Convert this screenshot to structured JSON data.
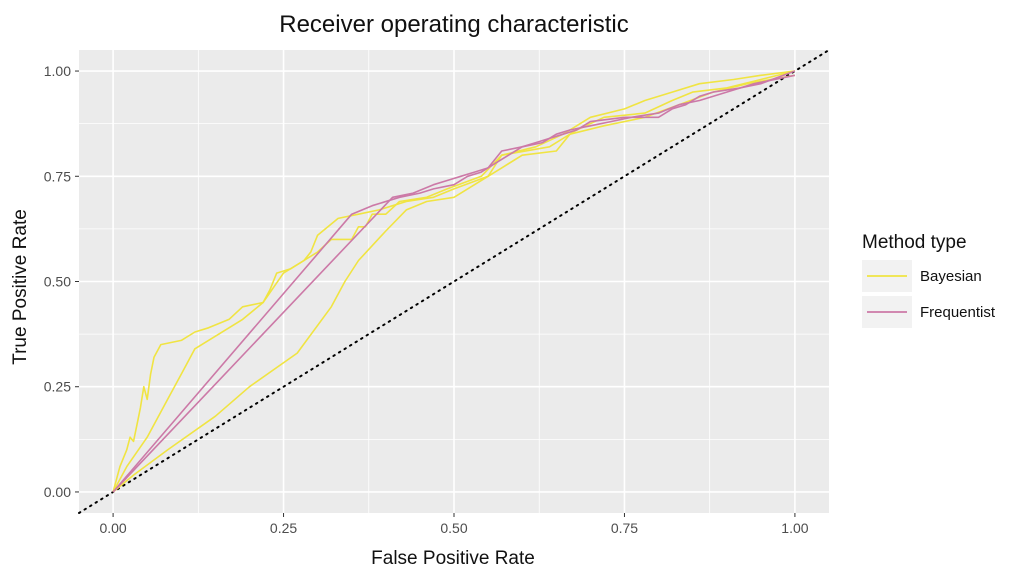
{
  "chart_data": {
    "type": "line",
    "title": "Receiver operating characteristic",
    "xlabel": "False Positive Rate",
    "ylabel": "True Positive Rate",
    "xlim": [
      -0.05,
      1.05
    ],
    "ylim": [
      -0.05,
      1.05
    ],
    "x_ticks": [
      "0.00",
      "0.25",
      "0.50",
      "0.75",
      "1.00"
    ],
    "y_ticks": [
      "0.00",
      "0.25",
      "0.50",
      "0.75",
      "1.00"
    ],
    "grid": true,
    "panel_background": "#EBEBEB",
    "legend": {
      "title": "Method type",
      "placement": "right",
      "entries": [
        {
          "label": "Bayesian",
          "color": "#F0E442"
        },
        {
          "label": "Frequentist",
          "color": "#CC79A7"
        }
      ]
    },
    "reference_line": {
      "style": "dotted",
      "color": "#000000",
      "from": [
        -0.05,
        -0.05
      ],
      "to": [
        1.05,
        1.05
      ]
    },
    "series": [
      {
        "group": "Bayesian",
        "color": "#F0E442",
        "points": [
          [
            0,
            0
          ],
          [
            0.005,
            0.03
          ],
          [
            0.01,
            0.06
          ],
          [
            0.02,
            0.1
          ],
          [
            0.025,
            0.13
          ],
          [
            0.03,
            0.12
          ],
          [
            0.035,
            0.16
          ],
          [
            0.04,
            0.2
          ],
          [
            0.045,
            0.25
          ],
          [
            0.05,
            0.22
          ],
          [
            0.055,
            0.28
          ],
          [
            0.06,
            0.32
          ],
          [
            0.07,
            0.35
          ],
          [
            0.1,
            0.36
          ],
          [
            0.12,
            0.38
          ],
          [
            0.14,
            0.39
          ],
          [
            0.17,
            0.41
          ],
          [
            0.19,
            0.44
          ],
          [
            0.22,
            0.45
          ],
          [
            0.23,
            0.48
          ],
          [
            0.24,
            0.52
          ],
          [
            0.26,
            0.53
          ],
          [
            0.28,
            0.55
          ],
          [
            0.29,
            0.57
          ],
          [
            0.3,
            0.61
          ],
          [
            0.33,
            0.65
          ],
          [
            0.36,
            0.66
          ],
          [
            0.39,
            0.67
          ],
          [
            0.41,
            0.68
          ],
          [
            0.43,
            0.69
          ],
          [
            0.47,
            0.7
          ],
          [
            0.5,
            0.72
          ],
          [
            0.55,
            0.75
          ],
          [
            0.57,
            0.8
          ],
          [
            0.62,
            0.82
          ],
          [
            0.66,
            0.85
          ],
          [
            0.7,
            0.89
          ],
          [
            0.75,
            0.91
          ],
          [
            0.78,
            0.93
          ],
          [
            0.82,
            0.95
          ],
          [
            0.86,
            0.97
          ],
          [
            0.91,
            0.98
          ],
          [
            0.95,
            0.99
          ],
          [
            1.0,
            1.0
          ]
        ]
      },
      {
        "group": "Bayesian",
        "color": "#F0E442",
        "points": [
          [
            0,
            0
          ],
          [
            0.02,
            0.06
          ],
          [
            0.05,
            0.13
          ],
          [
            0.08,
            0.22
          ],
          [
            0.1,
            0.28
          ],
          [
            0.12,
            0.34
          ],
          [
            0.15,
            0.37
          ],
          [
            0.19,
            0.41
          ],
          [
            0.22,
            0.45
          ],
          [
            0.25,
            0.52
          ],
          [
            0.28,
            0.55
          ],
          [
            0.3,
            0.57
          ],
          [
            0.32,
            0.6
          ],
          [
            0.35,
            0.6
          ],
          [
            0.36,
            0.63
          ],
          [
            0.37,
            0.63
          ],
          [
            0.38,
            0.66
          ],
          [
            0.4,
            0.66
          ],
          [
            0.42,
            0.69
          ],
          [
            0.46,
            0.7
          ],
          [
            0.49,
            0.72
          ],
          [
            0.54,
            0.75
          ],
          [
            0.57,
            0.8
          ],
          [
            0.64,
            0.82
          ],
          [
            0.68,
            0.86
          ],
          [
            0.72,
            0.89
          ],
          [
            0.78,
            0.9
          ],
          [
            0.82,
            0.93
          ],
          [
            0.85,
            0.95
          ],
          [
            0.9,
            0.96
          ],
          [
            0.95,
            0.98
          ],
          [
            1.0,
            1.0
          ]
        ]
      },
      {
        "group": "Bayesian",
        "color": "#F0E442",
        "points": [
          [
            0,
            0
          ],
          [
            0.03,
            0.04
          ],
          [
            0.08,
            0.1
          ],
          [
            0.15,
            0.18
          ],
          [
            0.2,
            0.25
          ],
          [
            0.27,
            0.33
          ],
          [
            0.32,
            0.44
          ],
          [
            0.34,
            0.5
          ],
          [
            0.36,
            0.55
          ],
          [
            0.4,
            0.62
          ],
          [
            0.43,
            0.67
          ],
          [
            0.46,
            0.69
          ],
          [
            0.5,
            0.7
          ],
          [
            0.53,
            0.73
          ],
          [
            0.57,
            0.77
          ],
          [
            0.6,
            0.8
          ],
          [
            0.65,
            0.81
          ],
          [
            0.67,
            0.85
          ],
          [
            0.72,
            0.87
          ],
          [
            0.78,
            0.89
          ],
          [
            0.83,
            0.92
          ],
          [
            0.88,
            0.95
          ],
          [
            0.93,
            0.97
          ],
          [
            1.0,
            0.99
          ]
        ]
      },
      {
        "group": "Frequentist",
        "color": "#CC79A7",
        "points": [
          [
            0,
            0
          ],
          [
            0.35,
            0.66
          ],
          [
            0.38,
            0.68
          ],
          [
            0.42,
            0.7
          ],
          [
            0.45,
            0.71
          ],
          [
            0.47,
            0.72
          ],
          [
            0.5,
            0.73
          ],
          [
            0.52,
            0.75
          ],
          [
            0.54,
            0.76
          ],
          [
            0.56,
            0.78
          ],
          [
            0.58,
            0.8
          ],
          [
            0.6,
            0.82
          ],
          [
            0.62,
            0.83
          ],
          [
            0.64,
            0.84
          ],
          [
            0.66,
            0.85
          ],
          [
            0.68,
            0.86
          ],
          [
            0.7,
            0.88
          ],
          [
            0.75,
            0.89
          ],
          [
            0.8,
            0.89
          ],
          [
            0.82,
            0.91
          ],
          [
            0.84,
            0.92
          ],
          [
            0.86,
            0.94
          ],
          [
            0.88,
            0.95
          ],
          [
            0.92,
            0.96
          ],
          [
            0.95,
            0.97
          ],
          [
            1.0,
            1.0
          ]
        ]
      },
      {
        "group": "Frequentist",
        "color": "#CC79A7",
        "points": [
          [
            0,
            0
          ],
          [
            0.41,
            0.7
          ],
          [
            0.44,
            0.71
          ],
          [
            0.47,
            0.73
          ],
          [
            0.49,
            0.74
          ],
          [
            0.51,
            0.75
          ],
          [
            0.53,
            0.76
          ],
          [
            0.55,
            0.77
          ],
          [
            0.57,
            0.81
          ],
          [
            0.6,
            0.82
          ],
          [
            0.63,
            0.83
          ],
          [
            0.65,
            0.85
          ],
          [
            0.67,
            0.86
          ],
          [
            0.7,
            0.87
          ],
          [
            0.73,
            0.88
          ],
          [
            0.76,
            0.89
          ],
          [
            0.8,
            0.9
          ],
          [
            0.83,
            0.92
          ],
          [
            0.86,
            0.93
          ],
          [
            0.9,
            0.95
          ],
          [
            0.94,
            0.97
          ],
          [
            1.0,
            0.99
          ]
        ]
      }
    ]
  }
}
